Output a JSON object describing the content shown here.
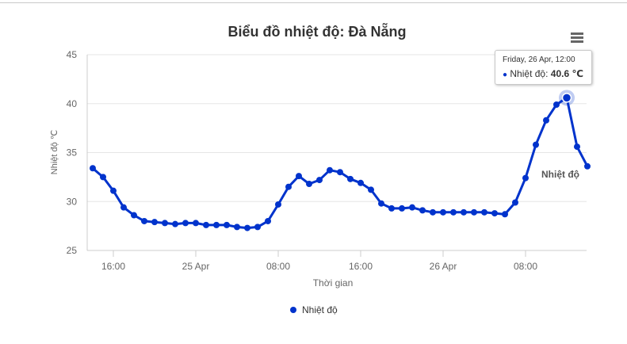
{
  "chart_data": {
    "type": "line",
    "title": "Biểu đồ nhiệt độ: Đà Nẵng",
    "xlabel": "Thời gian",
    "ylabel": "Nhiệt độ ℃",
    "ylim": [
      25,
      45
    ],
    "yticks": [
      "25",
      "30",
      "35",
      "40",
      "45"
    ],
    "xticks": [
      {
        "x": 2,
        "label": "16:00"
      },
      {
        "x": 10,
        "label": "25 Apr"
      },
      {
        "x": 18,
        "label": "08:00"
      },
      {
        "x": 26,
        "label": "16:00"
      },
      {
        "x": 34,
        "label": "26 Apr"
      },
      {
        "x": 42,
        "label": "08:00"
      }
    ],
    "x_unit": "hour index (one point per hour, starting 14:00 on 24 Apr)",
    "series": [
      {
        "name": "Nhiệt độ",
        "color": "#0033cc",
        "values": [
          33.4,
          32.5,
          31.1,
          29.4,
          28.6,
          28.0,
          27.9,
          27.8,
          27.7,
          27.8,
          27.8,
          27.6,
          27.6,
          27.6,
          27.4,
          27.3,
          27.4,
          28.0,
          29.7,
          31.5,
          32.6,
          31.8,
          32.2,
          33.2,
          33.0,
          32.3,
          31.9,
          31.2,
          29.8,
          29.3,
          29.3,
          29.4,
          29.1,
          28.9,
          28.9,
          28.9,
          28.9,
          28.9,
          28.9,
          28.8,
          28.7,
          29.9,
          32.4,
          35.8,
          38.3,
          39.9,
          40.6,
          35.6,
          33.6
        ]
      }
    ],
    "series_label": "Nhiệt độ",
    "highlight_index": 46,
    "legend": {
      "position": "bottom-center"
    },
    "grid": true
  },
  "tooltip": {
    "time": "Friday, 26 Apr, 12:00",
    "series_name": "Nhiệt độ:",
    "value": "40.6 ℃"
  },
  "legend_label": "Nhiệt độ",
  "menu_icon": "hamburger-menu-icon"
}
